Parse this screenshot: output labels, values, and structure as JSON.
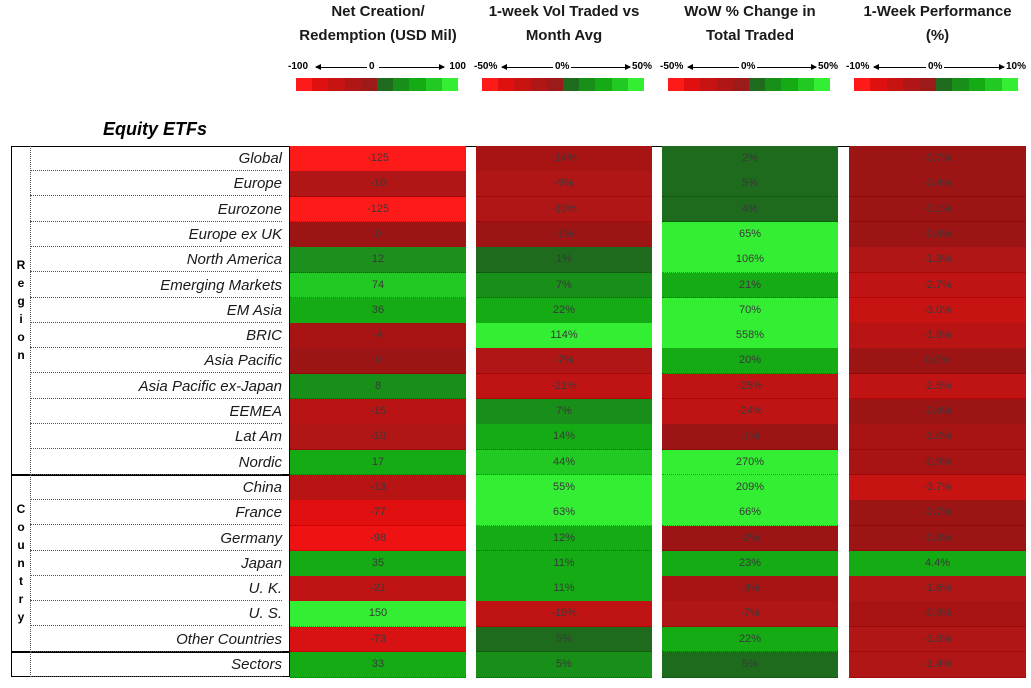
{
  "chart_data": {
    "type": "table",
    "title": "Equity ETFs",
    "columns": [
      {
        "key": "net",
        "header_lines": [
          "Net Creation/",
          "Redemption (USD Mil)"
        ],
        "scale": {
          "min": -100,
          "max": 100,
          "min_label": "-100",
          "mid_label": "0",
          "max_label": "100"
        }
      },
      {
        "key": "vol",
        "header_lines": [
          "1-week Vol Traded vs",
          "Month Avg"
        ],
        "scale": {
          "min": -50,
          "max": 50,
          "min_label": "-50%",
          "mid_label": "0%",
          "max_label": "50%"
        }
      },
      {
        "key": "wow",
        "header_lines": [
          "WoW % Change in",
          "Total Traded"
        ],
        "scale": {
          "min": -50,
          "max": 50,
          "min_label": "-50%",
          "mid_label": "0%",
          "max_label": "50%"
        }
      },
      {
        "key": "perf",
        "header_lines": [
          "1-Week Performance",
          "(%)"
        ],
        "scale": {
          "min": -10,
          "max": 10,
          "min_label": "-10%",
          "mid_label": "0%",
          "max_label": "10%"
        }
      }
    ],
    "scale_colors": [
      "#ff1a1a",
      "#e01010",
      "#c81313",
      "#b01616",
      "#9c1a1a",
      "#1e6b1e",
      "#188f18",
      "#14ab14",
      "#22c922",
      "#33ee33"
    ],
    "groups": [
      {
        "name": "Region",
        "rows": [
          {
            "label": "Global",
            "net": "-125",
            "vol": "-14%",
            "wow": "2%",
            "perf": "-0.7%",
            "colors": [
              "#ff1a1a",
              "#a81414",
              "#1e6b1e",
              "#9c1414"
            ]
          },
          {
            "label": "Europe",
            "net": "-10",
            "vol": "-9%",
            "wow": "5%",
            "perf": "-0.4%",
            "colors": [
              "#b01616",
              "#b01616",
              "#1e6b1e",
              "#9c1414"
            ]
          },
          {
            "label": "Eurozone",
            "net": "-125",
            "vol": "-10%",
            "wow": "4%",
            "perf": "-0.1%",
            "colors": [
              "#ff1a1a",
              "#b01616",
              "#1e6b1e",
              "#9c1414"
            ]
          },
          {
            "label": "Europe ex UK",
            "net": "0",
            "vol": "-1%",
            "wow": "65%",
            "perf": "-0.4%",
            "colors": [
              "#9c1414",
              "#9c1414",
              "#33ee33",
              "#9c1414"
            ]
          },
          {
            "label": "North America",
            "net": "12",
            "vol": "1%",
            "wow": "106%",
            "perf": "-1.3%",
            "colors": [
              "#1c8f1c",
              "#1e6b1e",
              "#33ee33",
              "#b01616"
            ]
          },
          {
            "label": "Emerging Markets",
            "net": "74",
            "vol": "7%",
            "wow": "21%",
            "perf": "-2.7%",
            "colors": [
              "#22c922",
              "#188f18",
              "#14ab14",
              "#c01414"
            ]
          },
          {
            "label": "EM Asia",
            "net": "36",
            "vol": "22%",
            "wow": "70%",
            "perf": "-3.0%",
            "colors": [
              "#14ab14",
              "#14ab14",
              "#33ee33",
              "#c81313"
            ]
          },
          {
            "label": "BRIC",
            "net": "-4",
            "vol": "114%",
            "wow": "558%",
            "perf": "-1.9%",
            "colors": [
              "#a81414",
              "#33ee33",
              "#33ee33",
              "#b81414"
            ]
          },
          {
            "label": "Asia Pacific",
            "net": "0",
            "vol": "-7%",
            "wow": "20%",
            "perf": "0.0%",
            "colors": [
              "#9c1414",
              "#b01616",
              "#14ab14",
              "#9c1414"
            ]
          },
          {
            "label": "Asia Pacific ex-Japan",
            "net": "8",
            "vol": "-21%",
            "wow": "-25%",
            "perf": "-2.5%",
            "colors": [
              "#188f18",
              "#c01414",
              "#c01414",
              "#c01414"
            ]
          },
          {
            "label": "EEMEA",
            "net": "-15",
            "vol": "7%",
            "wow": "-24%",
            "perf": "-0.4%",
            "colors": [
              "#b81414",
              "#188f18",
              "#c01414",
              "#9c1414"
            ]
          },
          {
            "label": "Lat Am",
            "net": "-10",
            "vol": "14%",
            "wow": "-1%",
            "perf": "-1.0%",
            "colors": [
              "#b01616",
              "#14ab14",
              "#9c1414",
              "#a81414"
            ]
          },
          {
            "label": "Nordic",
            "net": "17",
            "vol": "44%",
            "wow": "270%",
            "perf": "-0.9%",
            "colors": [
              "#14ab14",
              "#22c922",
              "#33ee33",
              "#a81414"
            ]
          }
        ]
      },
      {
        "name": "Country",
        "rows": [
          {
            "label": "China",
            "net": "-13",
            "vol": "55%",
            "wow": "209%",
            "perf": "-3.7%",
            "colors": [
              "#b81414",
              "#33ee33",
              "#33ee33",
              "#c81313"
            ]
          },
          {
            "label": "France",
            "net": "-77",
            "vol": "63%",
            "wow": "66%",
            "perf": "-0.7%",
            "colors": [
              "#e01010",
              "#33ee33",
              "#33ee33",
              "#9c1414"
            ]
          },
          {
            "label": "Germany",
            "net": "-98",
            "vol": "12%",
            "wow": "-2%",
            "perf": "-0.3%",
            "colors": [
              "#ee1212",
              "#14ab14",
              "#9c1414",
              "#9c1414"
            ]
          },
          {
            "label": "Japan",
            "net": "35",
            "vol": "11%",
            "wow": "23%",
            "perf": "4.4%",
            "colors": [
              "#14ab14",
              "#14ab14",
              "#14ab14",
              "#14ab14"
            ]
          },
          {
            "label": "U. K.",
            "net": "-21",
            "vol": "11%",
            "wow": "-3%",
            "perf": "-1.6%",
            "colors": [
              "#c01414",
              "#14ab14",
              "#a81414",
              "#b01616"
            ]
          },
          {
            "label": "U. S.",
            "net": "150",
            "vol": "-19%",
            "wow": "-7%",
            "perf": "-0.9%",
            "colors": [
              "#33ee33",
              "#c01414",
              "#b01616",
              "#a81414"
            ]
          },
          {
            "label": "Other Countries",
            "net": "-73",
            "vol": "5%",
            "wow": "22%",
            "perf": "-1.6%",
            "colors": [
              "#d81212",
              "#1e6b1e",
              "#14ab14",
              "#b01616"
            ]
          }
        ]
      },
      {
        "name": "",
        "rows": [
          {
            "label": "Sectors",
            "net": "33",
            "vol": "5%",
            "wow": "5%",
            "perf": "-1.4%",
            "colors": [
              "#14ab14",
              "#188f18",
              "#1e6b1e",
              "#b01616"
            ]
          }
        ]
      }
    ]
  }
}
